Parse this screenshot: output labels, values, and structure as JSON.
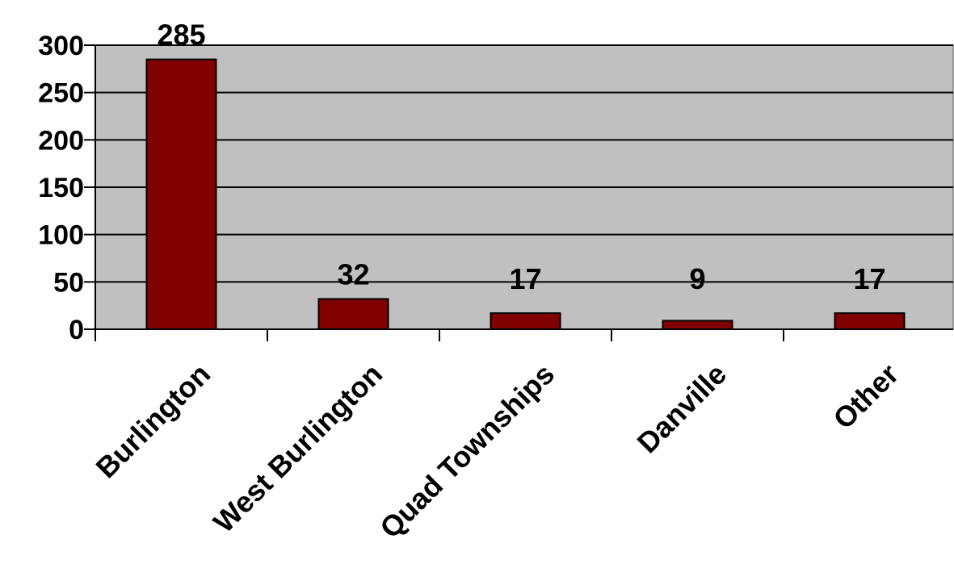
{
  "chart_data": {
    "type": "bar",
    "title": "",
    "xlabel": "",
    "ylabel": "",
    "categories": [
      "Burlington",
      "West Burlington",
      "Quad Townships",
      "Danville",
      "Other"
    ],
    "values": [
      285,
      32,
      17,
      9,
      17
    ],
    "data_labels": [
      "285",
      "32",
      "17",
      "9",
      "17"
    ],
    "ylim": [
      0,
      300
    ],
    "y_ticks": [
      0,
      50,
      100,
      150,
      200,
      250,
      300
    ],
    "y_tick_labels": [
      "0",
      "50",
      "100",
      "150",
      "200",
      "250",
      "300"
    ],
    "grid": true,
    "legend": "none",
    "colors": {
      "bar": "#800000",
      "plot_background": "#c0c0c0",
      "gridline": "#000000"
    }
  }
}
